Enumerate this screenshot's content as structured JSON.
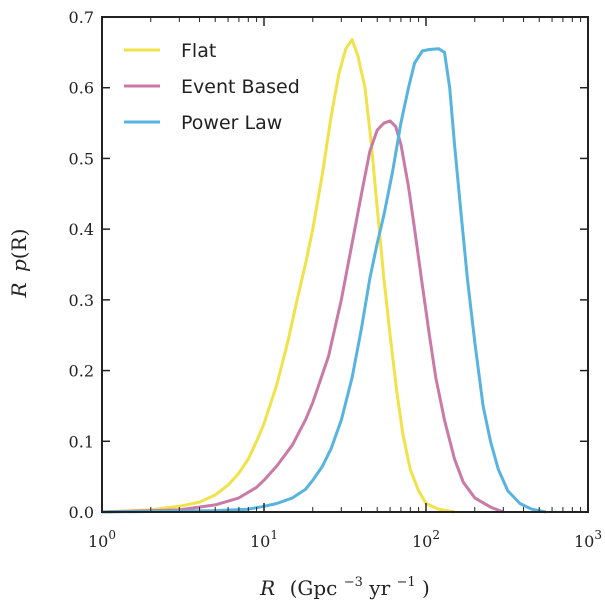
{
  "chart_data": {
    "type": "line",
    "xlabel": "R (Gpc⁻³ yr⁻¹)",
    "xlabel_parts": {
      "var": "R",
      "open": "(Gpc",
      "gpc_exp": "−3",
      "yr": " yr",
      "yr_exp": "−1",
      "close": ")"
    },
    "ylabel": "R p(R)",
    "ylabel_parts": {
      "r": "R",
      "p": "p",
      "rest": "(R)"
    },
    "x_scale": "log",
    "xlim": [
      1,
      1000
    ],
    "ylim": [
      0,
      0.7
    ],
    "grid": false,
    "legend_position": "top-left",
    "x_ticks": [
      {
        "value": 1,
        "base": "10",
        "exp": "0"
      },
      {
        "value": 10,
        "base": "10",
        "exp": "1"
      },
      {
        "value": 100,
        "base": "10",
        "exp": "2"
      },
      {
        "value": 1000,
        "base": "10",
        "exp": "3"
      }
    ],
    "y_ticks": [
      "0.0",
      "0.1",
      "0.2",
      "0.3",
      "0.4",
      "0.5",
      "0.6",
      "0.7"
    ],
    "series": [
      {
        "name": "Flat",
        "color": "#f2e24a",
        "points": [
          [
            1,
            0.0
          ],
          [
            2,
            0.003
          ],
          [
            3,
            0.008
          ],
          [
            4,
            0.014
          ],
          [
            5,
            0.024
          ],
          [
            6,
            0.038
          ],
          [
            7,
            0.055
          ],
          [
            8,
            0.075
          ],
          [
            9,
            0.1
          ],
          [
            10,
            0.125
          ],
          [
            12,
            0.18
          ],
          [
            14,
            0.24
          ],
          [
            16,
            0.3
          ],
          [
            18,
            0.35
          ],
          [
            20,
            0.4
          ],
          [
            23,
            0.48
          ],
          [
            26,
            0.56
          ],
          [
            29,
            0.62
          ],
          [
            32,
            0.655
          ],
          [
            35,
            0.668
          ],
          [
            38,
            0.645
          ],
          [
            42,
            0.6
          ],
          [
            46,
            0.52
          ],
          [
            50,
            0.43
          ],
          [
            55,
            0.33
          ],
          [
            60,
            0.25
          ],
          [
            66,
            0.17
          ],
          [
            72,
            0.11
          ],
          [
            80,
            0.06
          ],
          [
            90,
            0.03
          ],
          [
            100,
            0.012
          ],
          [
            120,
            0.004
          ],
          [
            150,
            0.0
          ]
        ]
      },
      {
        "name": "Event Based",
        "color": "#c97aa8",
        "points": [
          [
            1,
            0.0
          ],
          [
            3,
            0.003
          ],
          [
            5,
            0.01
          ],
          [
            7,
            0.02
          ],
          [
            9,
            0.035
          ],
          [
            10,
            0.045
          ],
          [
            12,
            0.065
          ],
          [
            15,
            0.095
          ],
          [
            18,
            0.13
          ],
          [
            20,
            0.155
          ],
          [
            25,
            0.22
          ],
          [
            30,
            0.3
          ],
          [
            35,
            0.38
          ],
          [
            40,
            0.45
          ],
          [
            45,
            0.51
          ],
          [
            50,
            0.54
          ],
          [
            55,
            0.55
          ],
          [
            60,
            0.553
          ],
          [
            65,
            0.545
          ],
          [
            70,
            0.52
          ],
          [
            78,
            0.46
          ],
          [
            85,
            0.4
          ],
          [
            95,
            0.32
          ],
          [
            105,
            0.25
          ],
          [
            115,
            0.19
          ],
          [
            130,
            0.13
          ],
          [
            150,
            0.075
          ],
          [
            170,
            0.042
          ],
          [
            200,
            0.02
          ],
          [
            250,
            0.007
          ],
          [
            300,
            0.0
          ]
        ]
      },
      {
        "name": "Power Law",
        "color": "#57b3df",
        "points": [
          [
            1,
            0.0
          ],
          [
            5,
            0.002
          ],
          [
            8,
            0.004
          ],
          [
            10,
            0.008
          ],
          [
            12,
            0.012
          ],
          [
            15,
            0.02
          ],
          [
            18,
            0.032
          ],
          [
            20,
            0.045
          ],
          [
            23,
            0.065
          ],
          [
            26,
            0.09
          ],
          [
            30,
            0.13
          ],
          [
            35,
            0.19
          ],
          [
            40,
            0.26
          ],
          [
            45,
            0.33
          ],
          [
            50,
            0.38
          ],
          [
            55,
            0.42
          ],
          [
            62,
            0.48
          ],
          [
            70,
            0.55
          ],
          [
            78,
            0.6
          ],
          [
            85,
            0.635
          ],
          [
            95,
            0.652
          ],
          [
            105,
            0.654
          ],
          [
            120,
            0.655
          ],
          [
            130,
            0.65
          ],
          [
            140,
            0.6
          ],
          [
            150,
            0.52
          ],
          [
            165,
            0.42
          ],
          [
            180,
            0.33
          ],
          [
            200,
            0.24
          ],
          [
            225,
            0.15
          ],
          [
            250,
            0.1
          ],
          [
            280,
            0.06
          ],
          [
            320,
            0.03
          ],
          [
            380,
            0.012
          ],
          [
            450,
            0.004
          ],
          [
            550,
            0.0
          ]
        ]
      }
    ]
  }
}
